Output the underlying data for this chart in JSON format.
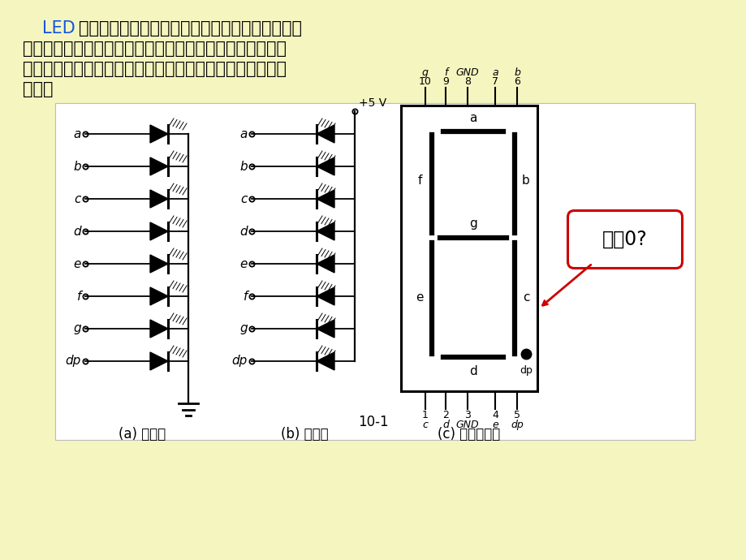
{
  "bg_color": "#F5F5C0",
  "title_led": "LED",
  "title_rest1": "数码显示器是由若干个发光二极管组成的，当发光",
  "title_line2": "二极管导通时，相应的点或线段发光，将这些二极管排成一",
  "title_line3": "定图形，控制不同组合的二极管导通，就可以显示出不同的",
  "title_line4": "字形。",
  "caption_a": "(a) 共阴极",
  "caption_b": "(b) 共阳极",
  "caption_c": "(c) 外形及引脚",
  "fig_label": "10-1",
  "circuit_labels": [
    "a",
    "b",
    "c",
    "d",
    "e",
    "f",
    "g",
    "dp"
  ],
  "pin_top_labels": [
    "g",
    "f",
    "GND",
    "a",
    "b"
  ],
  "pin_top_nums": [
    "10",
    "9",
    "8",
    "7",
    "6"
  ],
  "pin_bot_nums": [
    "1",
    "2",
    "3",
    "4",
    "5"
  ],
  "pin_bot_labels": [
    "c",
    "d",
    "GND",
    "e",
    "dp"
  ],
  "callout_text": "显示0?",
  "vcc_label": "+5 V"
}
